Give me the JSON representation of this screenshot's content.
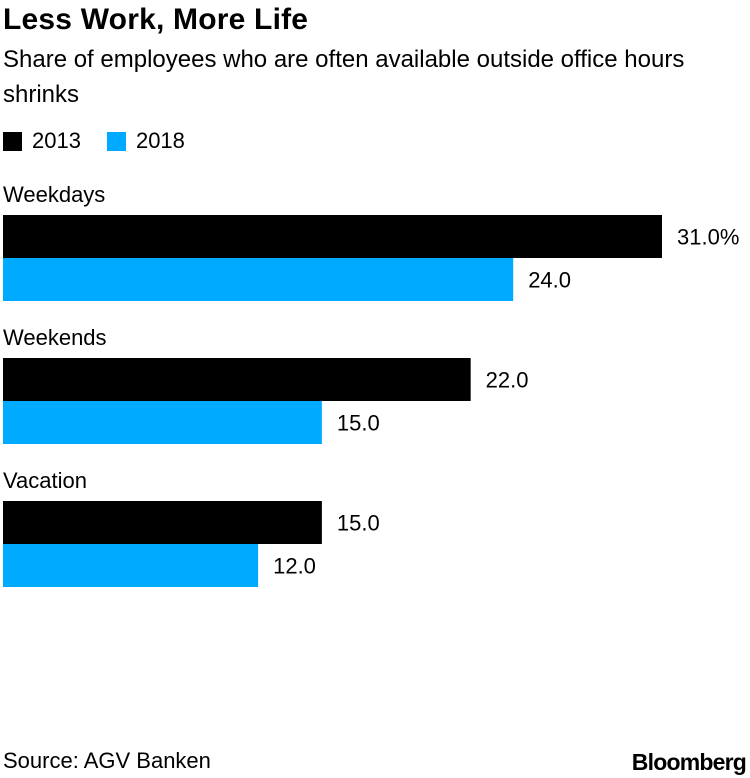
{
  "chart_data": {
    "type": "bar",
    "orientation": "horizontal",
    "title": "Less Work, More Life",
    "subtitle": "Share of employees who are often available outside office hours shrinks",
    "categories": [
      "Weekdays",
      "Weekends",
      "Vacation"
    ],
    "series": [
      {
        "name": "2013",
        "color": "#000000",
        "values": [
          31.0,
          22.0,
          15.0
        ],
        "labels": [
          "31.0%",
          "22.0",
          "15.0"
        ]
      },
      {
        "name": "2018",
        "color": "#00aaff",
        "values": [
          24.0,
          15.0,
          12.0
        ],
        "labels": [
          "24.0",
          "15.0",
          "12.0"
        ]
      }
    ],
    "xlim": [
      0,
      31
    ],
    "grid": false,
    "legend_position": "top-left",
    "source": "Source: AGV Banken"
  },
  "branding": {
    "logo_text": "Bloomberg"
  }
}
